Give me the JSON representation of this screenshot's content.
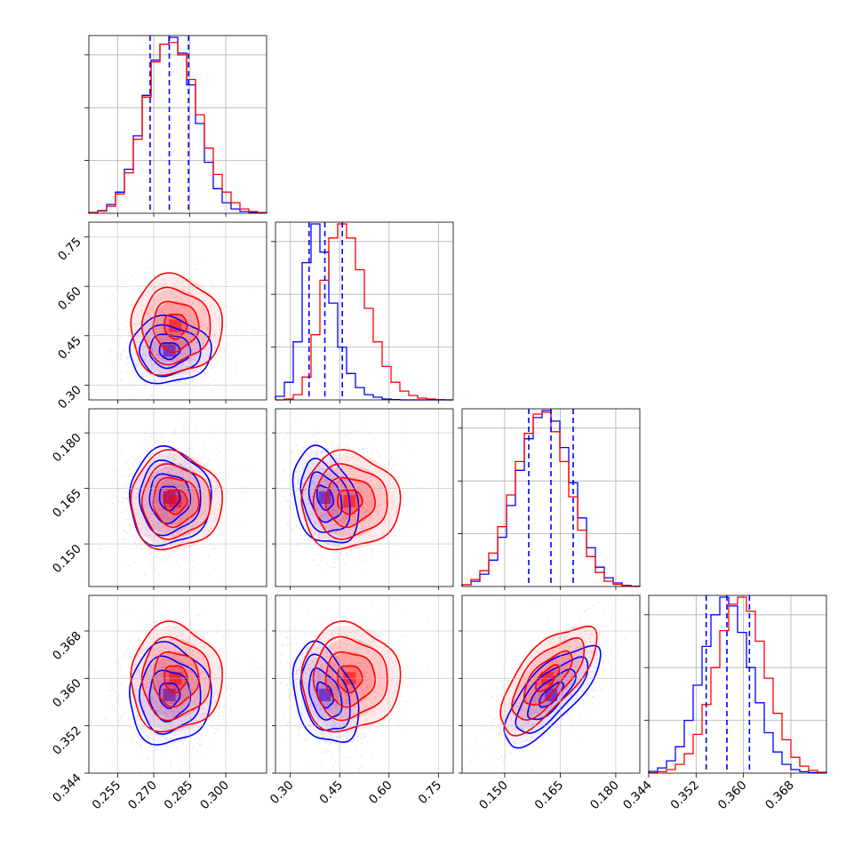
{
  "chart_data": {
    "type": "corner",
    "grid": true,
    "series": [
      {
        "color": "#0000ff"
      },
      {
        "color": "#ff0000"
      }
    ],
    "quantiles_color": "#0000ff",
    "params": [
      {
        "range": [
          0.243,
          0.317
        ],
        "ticks": [
          0.255,
          0.27,
          0.285,
          0.3
        ],
        "tick_labels": [
          "0.255",
          "0.270",
          "0.285",
          "0.300"
        ]
      },
      {
        "range": [
          0.255,
          0.795
        ],
        "ticks": [
          0.3,
          0.45,
          0.6,
          0.75
        ],
        "tick_labels": [
          "0.30",
          "0.45",
          "0.60",
          "0.75"
        ]
      },
      {
        "range": [
          0.1385,
          0.1865
        ],
        "ticks": [
          0.15,
          0.165,
          0.18
        ],
        "tick_labels": [
          "0.150",
          "0.165",
          "0.180"
        ]
      },
      {
        "range": [
          0.344,
          0.374
        ],
        "ticks": [
          0.344,
          0.352,
          0.36,
          0.368
        ],
        "tick_labels": [
          "0.344",
          "0.352",
          "0.360",
          "0.368"
        ]
      }
    ],
    "hist_ticks_frac": [
      0.3,
      0.6,
      0.9
    ],
    "quantile_lines": [
      [
        0.2685,
        0.2765,
        0.2845
      ],
      [
        0.357,
        0.405,
        0.458
      ],
      [
        0.1565,
        0.1625,
        0.1685
      ],
      [
        0.3537,
        0.3572,
        0.361
      ]
    ],
    "histograms": [
      {
        "edges": [
          0.243,
          0.2467,
          0.2504,
          0.2541,
          0.2578,
          0.2615,
          0.2652,
          0.2689,
          0.2726,
          0.2763,
          0.28,
          0.2837,
          0.2874,
          0.2911,
          0.2948,
          0.2985,
          0.3022,
          0.3059,
          0.3096,
          0.3133,
          0.317
        ],
        "blue": [
          0.005,
          0.015,
          0.05,
          0.12,
          0.25,
          0.44,
          0.67,
          0.87,
          0.96,
          1.0,
          0.91,
          0.73,
          0.51,
          0.29,
          0.14,
          0.06,
          0.025,
          0.01,
          0.004,
          0.002
        ],
        "red": [
          0.004,
          0.012,
          0.04,
          0.11,
          0.23,
          0.42,
          0.66,
          0.86,
          0.96,
          0.97,
          0.9,
          0.76,
          0.56,
          0.37,
          0.22,
          0.12,
          0.06,
          0.025,
          0.01,
          0.004
        ]
      },
      {
        "edges": [
          0.255,
          0.282,
          0.309,
          0.336,
          0.363,
          0.39,
          0.417,
          0.444,
          0.471,
          0.498,
          0.525,
          0.552,
          0.579,
          0.606,
          0.633,
          0.66,
          0.687,
          0.714,
          0.741,
          0.768,
          0.795
        ],
        "blue": [
          0.02,
          0.1,
          0.33,
          0.78,
          1.0,
          0.84,
          0.55,
          0.3,
          0.15,
          0.07,
          0.03,
          0.015,
          0.005,
          0.002,
          0.0,
          0.0,
          0.0,
          0.0,
          0.0,
          0.0
        ],
        "red": [
          0.0,
          0.005,
          0.03,
          0.13,
          0.37,
          0.68,
          0.92,
          1.0,
          0.92,
          0.74,
          0.52,
          0.33,
          0.19,
          0.1,
          0.05,
          0.025,
          0.01,
          0.005,
          0.002,
          0.0
        ]
      },
      {
        "edges": [
          0.1385,
          0.1409,
          0.1433,
          0.1457,
          0.1481,
          0.1505,
          0.1529,
          0.1553,
          0.1577,
          0.1601,
          0.1625,
          0.1649,
          0.1673,
          0.1697,
          0.1721,
          0.1745,
          0.1769,
          0.1793,
          0.1817,
          0.1841,
          0.1865
        ],
        "blue": [
          0.01,
          0.03,
          0.07,
          0.15,
          0.28,
          0.46,
          0.66,
          0.84,
          0.96,
          1.0,
          0.94,
          0.79,
          0.59,
          0.39,
          0.22,
          0.11,
          0.05,
          0.02,
          0.007,
          0.002
        ],
        "red": [
          0.01,
          0.04,
          0.09,
          0.19,
          0.34,
          0.52,
          0.71,
          0.87,
          0.98,
          0.99,
          0.88,
          0.71,
          0.51,
          0.32,
          0.17,
          0.08,
          0.03,
          0.012,
          0.004,
          0.001
        ]
      },
      {
        "edges": [
          0.344,
          0.3455,
          0.347,
          0.3485,
          0.35,
          0.3515,
          0.353,
          0.3545,
          0.356,
          0.3575,
          0.359,
          0.3605,
          0.362,
          0.3635,
          0.365,
          0.3665,
          0.368,
          0.3695,
          0.371,
          0.3725,
          0.374
        ],
        "blue": [
          0.01,
          0.03,
          0.07,
          0.15,
          0.3,
          0.5,
          0.72,
          0.9,
          1.0,
          0.95,
          0.8,
          0.6,
          0.4,
          0.23,
          0.12,
          0.05,
          0.02,
          0.008,
          0.003,
          0.001
        ],
        "red": [
          0.002,
          0.008,
          0.02,
          0.05,
          0.11,
          0.22,
          0.39,
          0.6,
          0.81,
          0.96,
          1.0,
          0.92,
          0.75,
          0.54,
          0.34,
          0.19,
          0.09,
          0.04,
          0.015,
          0.005
        ]
      }
    ],
    "blue_means": [
      0.2765,
      0.405,
      0.1625,
      0.3572
    ],
    "red_means": [
      0.279,
      0.48,
      0.1615,
      0.36
    ],
    "blue_sds": [
      0.0085,
      0.05,
      0.0065,
      0.0042
    ],
    "red_sds": [
      0.0095,
      0.075,
      0.0065,
      0.0045
    ],
    "correlations": {
      "blue": {
        "2-3": 0.75,
        "1-3": -0.35,
        "1-2": -0.3
      },
      "red": {
        "2-3": 0.7
      }
    }
  }
}
